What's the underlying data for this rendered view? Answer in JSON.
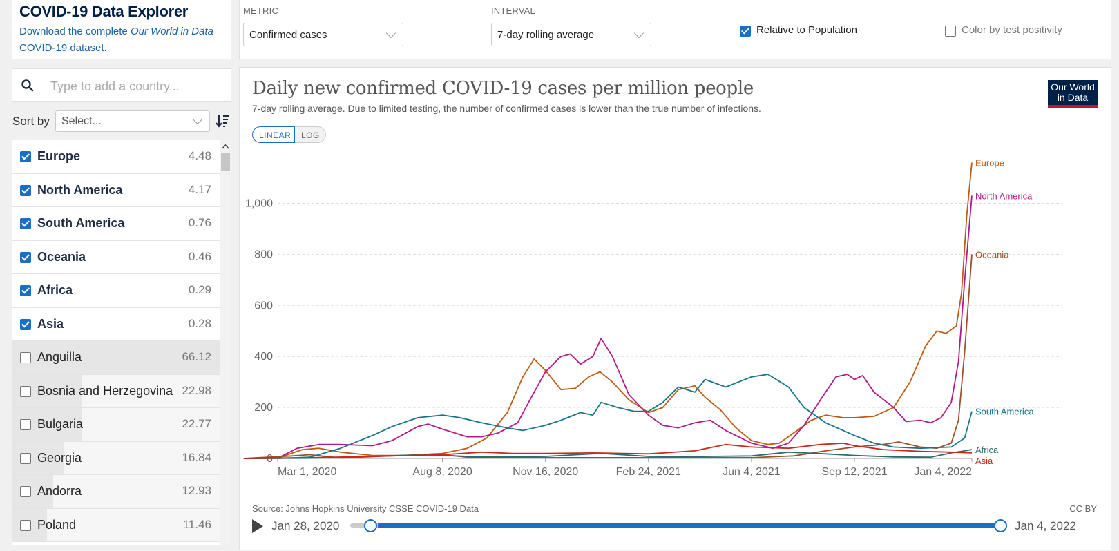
{
  "app": {
    "title": "COVID-19 Data Explorer",
    "download_text_pre": "Download the complete ",
    "download_text_italic": "Our World in Data",
    "download_text_post": " COVID-19 dataset."
  },
  "controls": {
    "metric_label": "METRIC",
    "metric_value": "Confirmed cases",
    "interval_label": "INTERVAL",
    "interval_value": "7-day rolling average",
    "relative_label": "Relative to Population",
    "relative_checked": true,
    "color_label": "Color by test positivity",
    "color_checked": false
  },
  "search": {
    "placeholder": "Type to add a country..."
  },
  "sort": {
    "label": "Sort by",
    "placeholder": "Select..."
  },
  "countries": [
    {
      "name": "Europe",
      "value": "4.48",
      "selected": true
    },
    {
      "name": "North America",
      "value": "4.17",
      "selected": true
    },
    {
      "name": "South America",
      "value": "0.76",
      "selected": true
    },
    {
      "name": "Oceania",
      "value": "0.46",
      "selected": true
    },
    {
      "name": "Africa",
      "value": "0.29",
      "selected": true
    },
    {
      "name": "Asia",
      "value": "0.28",
      "selected": true
    },
    {
      "name": "Anguilla",
      "value": "66.12",
      "selected": false,
      "share": 1.0
    },
    {
      "name": "Bosnia and Herzegovina",
      "value": "22.98",
      "selected": false,
      "share": 0.34
    },
    {
      "name": "Bulgaria",
      "value": "22.77",
      "selected": false,
      "share": 0.34
    },
    {
      "name": "Georgia",
      "value": "16.84",
      "selected": false,
      "share": 0.25
    },
    {
      "name": "Andorra",
      "value": "12.93",
      "selected": false,
      "share": 0.2
    },
    {
      "name": "Poland",
      "value": "11.46",
      "selected": false,
      "share": 0.17
    }
  ],
  "chart": {
    "scale_linear": "LINEAR",
    "scale_log": "LOG",
    "logo_line1": "Our World",
    "logo_line2": "in Data",
    "source": "Source: Johns Hopkins University CSSE COVID-19 Data",
    "license": "CC BY",
    "timeline_start": "Jan 28, 2020",
    "timeline_end": "Jan 4, 2022"
  },
  "chart_data": {
    "type": "line",
    "title": "Daily new confirmed COVID-19 cases per million people",
    "subtitle": "7-day rolling average. Due to limited testing, the number of confirmed cases is lower than the true number of infections.",
    "x_ticks": [
      "Mar 1, 2020",
      "Aug 8, 2020",
      "Nov 16, 2020",
      "Feb 24, 2021",
      "Jun 4, 2021",
      "Sep 12, 2021",
      "Jan 4, 2022"
    ],
    "x_range": [
      "2020-01-28",
      "2022-01-04"
    ],
    "y_ticks": [
      0,
      200,
      400,
      600,
      800,
      1000
    ],
    "y_tick_labels": [
      "0",
      "200",
      "400",
      "600",
      "800",
      "1,000"
    ],
    "ylim": [
      0,
      1180
    ],
    "grid": true,
    "series": [
      {
        "name": "Europe",
        "color": "#c15b12",
        "points": [
          [
            "2020-01-28",
            0
          ],
          [
            "2020-03-01",
            2
          ],
          [
            "2020-03-25",
            35
          ],
          [
            "2020-04-10",
            40
          ],
          [
            "2020-05-01",
            25
          ],
          [
            "2020-06-01",
            12
          ],
          [
            "2020-07-01",
            12
          ],
          [
            "2020-08-08",
            20
          ],
          [
            "2020-09-01",
            40
          ],
          [
            "2020-09-20",
            80
          ],
          [
            "2020-10-10",
            180
          ],
          [
            "2020-10-25",
            320
          ],
          [
            "2020-11-05",
            390
          ],
          [
            "2020-11-16",
            345
          ],
          [
            "2020-12-01",
            270
          ],
          [
            "2020-12-15",
            275
          ],
          [
            "2020-12-28",
            320
          ],
          [
            "2021-01-08",
            340
          ],
          [
            "2021-01-20",
            300
          ],
          [
            "2021-02-05",
            230
          ],
          [
            "2021-02-24",
            180
          ],
          [
            "2021-03-10",
            200
          ],
          [
            "2021-03-25",
            270
          ],
          [
            "2021-04-10",
            285
          ],
          [
            "2021-04-20",
            240
          ],
          [
            "2021-05-05",
            190
          ],
          [
            "2021-05-20",
            120
          ],
          [
            "2021-06-04",
            70
          ],
          [
            "2021-06-20",
            55
          ],
          [
            "2021-07-01",
            60
          ],
          [
            "2021-07-15",
            100
          ],
          [
            "2021-08-01",
            150
          ],
          [
            "2021-08-15",
            170
          ],
          [
            "2021-09-01",
            160
          ],
          [
            "2021-09-12",
            160
          ],
          [
            "2021-10-01",
            165
          ],
          [
            "2021-10-20",
            200
          ],
          [
            "2021-11-05",
            300
          ],
          [
            "2021-11-20",
            440
          ],
          [
            "2021-12-01",
            500
          ],
          [
            "2021-12-10",
            490
          ],
          [
            "2021-12-20",
            520
          ],
          [
            "2021-12-25",
            650
          ],
          [
            "2021-12-30",
            950
          ],
          [
            "2022-01-04",
            1160
          ]
        ]
      },
      {
        "name": "North America",
        "color": "#b4198a",
        "points": [
          [
            "2020-01-28",
            0
          ],
          [
            "2020-03-01",
            1
          ],
          [
            "2020-03-20",
            40
          ],
          [
            "2020-04-10",
            55
          ],
          [
            "2020-05-01",
            55
          ],
          [
            "2020-06-01",
            50
          ],
          [
            "2020-06-20",
            70
          ],
          [
            "2020-07-15",
            125
          ],
          [
            "2020-07-25",
            135
          ],
          [
            "2020-08-08",
            115
          ],
          [
            "2020-09-01",
            85
          ],
          [
            "2020-09-15",
            85
          ],
          [
            "2020-10-01",
            100
          ],
          [
            "2020-10-20",
            140
          ],
          [
            "2020-11-05",
            260
          ],
          [
            "2020-11-16",
            340
          ],
          [
            "2020-12-01",
            400
          ],
          [
            "2020-12-10",
            410
          ],
          [
            "2020-12-20",
            370
          ],
          [
            "2021-01-01",
            400
          ],
          [
            "2021-01-09",
            470
          ],
          [
            "2021-01-20",
            400
          ],
          [
            "2021-02-05",
            250
          ],
          [
            "2021-02-24",
            170
          ],
          [
            "2021-03-10",
            130
          ],
          [
            "2021-03-25",
            120
          ],
          [
            "2021-04-10",
            140
          ],
          [
            "2021-04-25",
            150
          ],
          [
            "2021-05-10",
            110
          ],
          [
            "2021-06-04",
            60
          ],
          [
            "2021-06-25",
            40
          ],
          [
            "2021-07-10",
            60
          ],
          [
            "2021-07-25",
            130
          ],
          [
            "2021-08-10",
            230
          ],
          [
            "2021-08-25",
            320
          ],
          [
            "2021-09-05",
            330
          ],
          [
            "2021-09-12",
            310
          ],
          [
            "2021-09-20",
            325
          ],
          [
            "2021-10-01",
            260
          ],
          [
            "2021-10-20",
            200
          ],
          [
            "2021-11-01",
            145
          ],
          [
            "2021-11-15",
            150
          ],
          [
            "2021-11-25",
            140
          ],
          [
            "2021-12-05",
            160
          ],
          [
            "2021-12-15",
            220
          ],
          [
            "2021-12-22",
            380
          ],
          [
            "2021-12-28",
            700
          ],
          [
            "2022-01-04",
            1030
          ]
        ]
      },
      {
        "name": "Oceania",
        "color": "#9a5129",
        "points": [
          [
            "2020-01-28",
            0
          ],
          [
            "2020-03-15",
            10
          ],
          [
            "2020-04-01",
            15
          ],
          [
            "2020-05-01",
            2
          ],
          [
            "2020-07-01",
            12
          ],
          [
            "2020-08-08",
            15
          ],
          [
            "2020-09-01",
            5
          ],
          [
            "2020-11-16",
            3
          ],
          [
            "2021-02-24",
            3
          ],
          [
            "2021-06-04",
            3
          ],
          [
            "2021-07-15",
            10
          ],
          [
            "2021-08-15",
            30
          ],
          [
            "2021-09-12",
            45
          ],
          [
            "2021-10-10",
            55
          ],
          [
            "2021-10-25",
            65
          ],
          [
            "2021-11-15",
            45
          ],
          [
            "2021-12-01",
            40
          ],
          [
            "2021-12-15",
            60
          ],
          [
            "2021-12-22",
            150
          ],
          [
            "2021-12-28",
            420
          ],
          [
            "2022-01-04",
            800
          ]
        ]
      },
      {
        "name": "South America",
        "color": "#18748b",
        "points": [
          [
            "2020-01-28",
            0
          ],
          [
            "2020-03-01",
            0
          ],
          [
            "2020-04-01",
            5
          ],
          [
            "2020-05-01",
            40
          ],
          [
            "2020-06-01",
            90
          ],
          [
            "2020-06-20",
            125
          ],
          [
            "2020-07-15",
            160
          ],
          [
            "2020-08-08",
            170
          ],
          [
            "2020-08-25",
            160
          ],
          [
            "2020-09-15",
            140
          ],
          [
            "2020-10-10",
            120
          ],
          [
            "2020-10-25",
            110
          ],
          [
            "2020-11-16",
            130
          ],
          [
            "2020-12-01",
            150
          ],
          [
            "2020-12-20",
            180
          ],
          [
            "2021-01-01",
            170
          ],
          [
            "2021-01-09",
            220
          ],
          [
            "2021-01-25",
            200
          ],
          [
            "2021-02-10",
            185
          ],
          [
            "2021-02-24",
            185
          ],
          [
            "2021-03-10",
            220
          ],
          [
            "2021-03-25",
            280
          ],
          [
            "2021-04-10",
            260
          ],
          [
            "2021-04-20",
            310
          ],
          [
            "2021-05-10",
            280
          ],
          [
            "2021-06-04",
            320
          ],
          [
            "2021-06-20",
            330
          ],
          [
            "2021-07-10",
            280
          ],
          [
            "2021-07-25",
            200
          ],
          [
            "2021-08-15",
            140
          ],
          [
            "2021-09-01",
            110
          ],
          [
            "2021-09-12",
            90
          ],
          [
            "2021-10-01",
            60
          ],
          [
            "2021-10-20",
            45
          ],
          [
            "2021-11-15",
            40
          ],
          [
            "2021-12-15",
            45
          ],
          [
            "2021-12-28",
            80
          ],
          [
            "2022-01-04",
            185
          ]
        ]
      },
      {
        "name": "Africa",
        "color": "#286d6b",
        "points": [
          [
            "2020-01-28",
            0
          ],
          [
            "2020-04-01",
            1
          ],
          [
            "2020-06-01",
            8
          ],
          [
            "2020-07-20",
            15
          ],
          [
            "2020-08-08",
            12
          ],
          [
            "2020-09-15",
            6
          ],
          [
            "2020-11-16",
            8
          ],
          [
            "2021-01-09",
            20
          ],
          [
            "2021-02-24",
            8
          ],
          [
            "2021-04-01",
            7
          ],
          [
            "2021-06-04",
            10
          ],
          [
            "2021-07-10",
            25
          ],
          [
            "2021-08-15",
            18
          ],
          [
            "2021-09-12",
            12
          ],
          [
            "2021-10-20",
            6
          ],
          [
            "2021-11-25",
            5
          ],
          [
            "2021-12-15",
            22
          ],
          [
            "2021-12-28",
            30
          ],
          [
            "2022-01-04",
            35
          ]
        ]
      },
      {
        "name": "Asia",
        "color": "#ce261e",
        "points": [
          [
            "2020-01-28",
            0
          ],
          [
            "2020-04-01",
            3
          ],
          [
            "2020-06-01",
            8
          ],
          [
            "2020-08-08",
            15
          ],
          [
            "2020-09-15",
            25
          ],
          [
            "2020-10-15",
            20
          ],
          [
            "2020-11-16",
            20
          ],
          [
            "2021-01-01",
            22
          ],
          [
            "2021-02-24",
            18
          ],
          [
            "2021-04-10",
            30
          ],
          [
            "2021-05-10",
            55
          ],
          [
            "2021-06-04",
            45
          ],
          [
            "2021-07-10",
            40
          ],
          [
            "2021-08-10",
            55
          ],
          [
            "2021-09-01",
            60
          ],
          [
            "2021-09-12",
            50
          ],
          [
            "2021-10-10",
            35
          ],
          [
            "2021-11-15",
            28
          ],
          [
            "2021-12-15",
            25
          ],
          [
            "2022-01-04",
            22
          ]
        ]
      }
    ]
  }
}
